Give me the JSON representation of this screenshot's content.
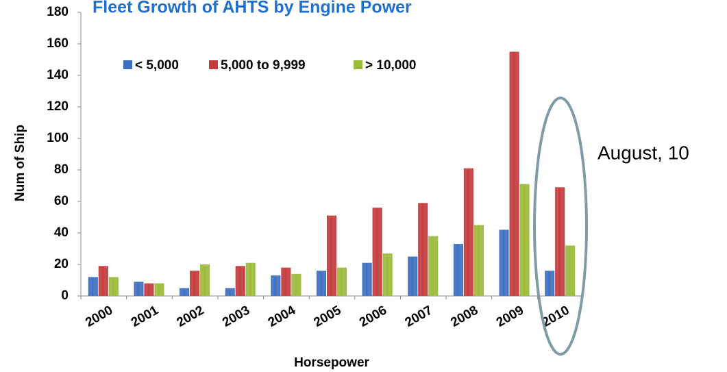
{
  "chart_data": {
    "type": "bar",
    "title": "Fleet Growth of AHTS by Engine Power",
    "x_label": "Horsepower",
    "y_label": "Num of Ship",
    "annotation": "August, 10",
    "categories": [
      "2000",
      "2001",
      "2002",
      "2003",
      "2004",
      "2005",
      "2006",
      "2007",
      "2008",
      "2009",
      "2010"
    ],
    "series": [
      {
        "name": "< 5,000",
        "color": "#3d6fc0",
        "values": [
          12,
          9,
          5,
          5,
          13,
          16,
          21,
          25,
          33,
          42,
          16
        ]
      },
      {
        "name": "5,000 to 9,999",
        "color": "#c43b3d",
        "values": [
          19,
          8,
          16,
          19,
          18,
          51,
          56,
          59,
          81,
          155,
          69
        ]
      },
      {
        "name": "> 10,000",
        "color": "#9bbb3b",
        "values": [
          12,
          8,
          20,
          21,
          14,
          18,
          27,
          38,
          45,
          71,
          32
        ]
      }
    ],
    "ylim": [
      0,
      180
    ],
    "yticks": [
      0,
      20,
      40,
      60,
      80,
      100,
      120,
      140,
      160,
      180
    ],
    "grid": false
  }
}
